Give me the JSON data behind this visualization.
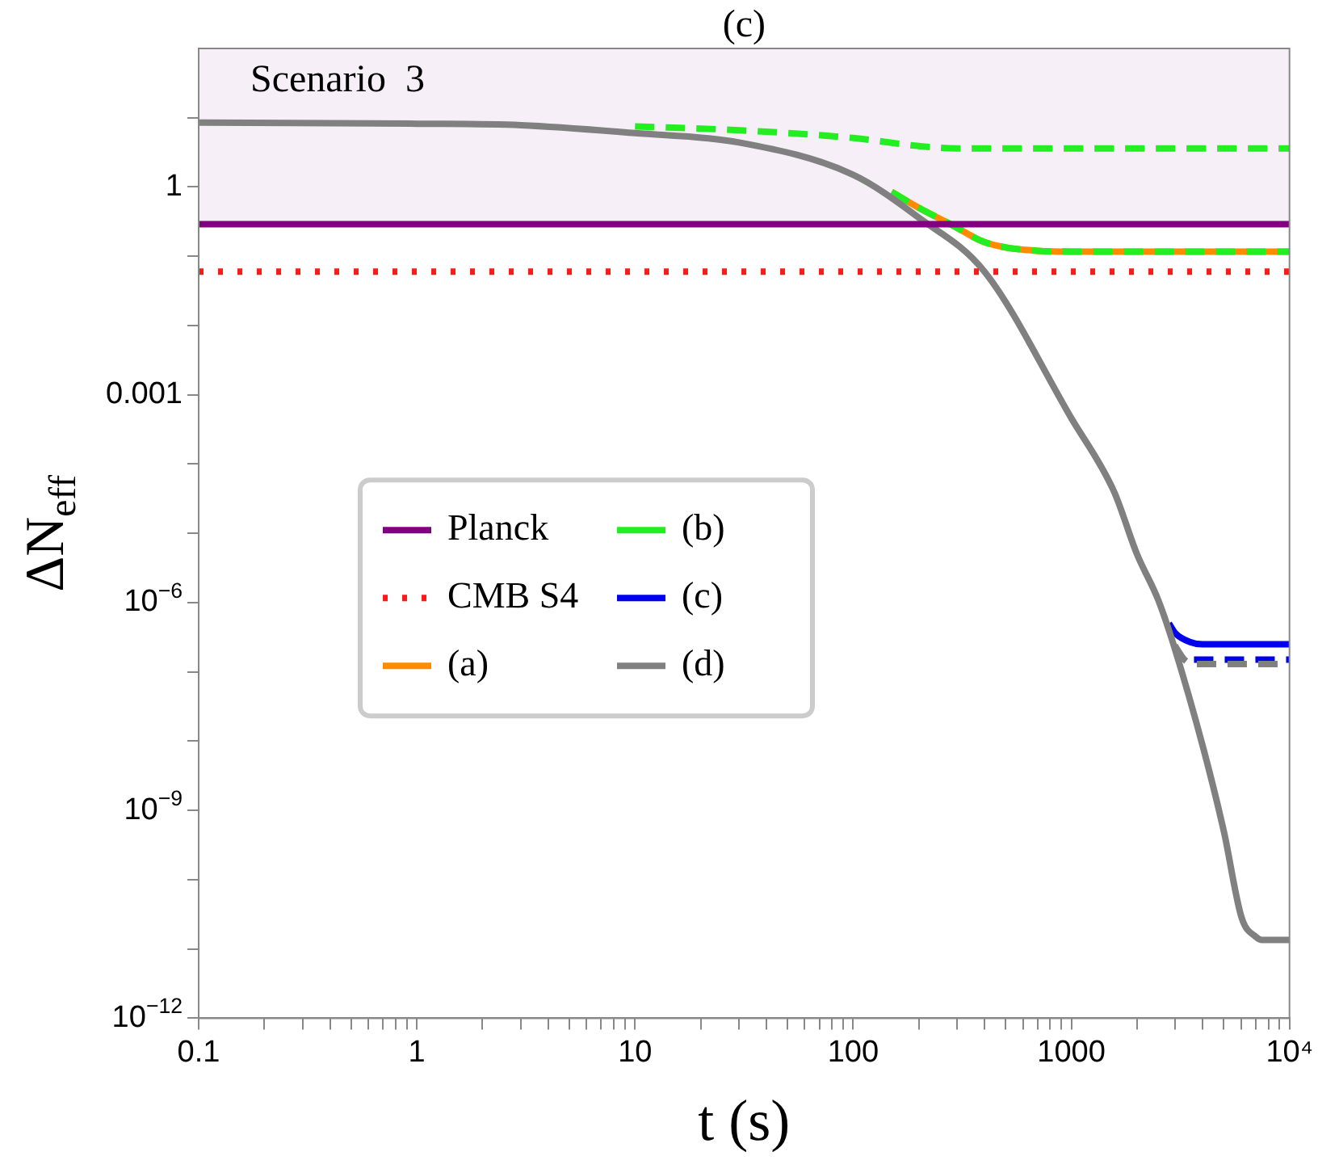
{
  "chart_data": {
    "type": "line",
    "title": "(c)",
    "xlabel": "t (s)",
    "ylabel": "ΔN$_{eff}$",
    "log": "xy",
    "grid": false,
    "legend": "left",
    "annotations": [
      "Scenario  3"
    ],
    "xlim": [
      0.1,
      10000
    ],
    "ylim": [
      1e-12,
      100
    ],
    "xticks": [
      0.1,
      {
        "value": 0.2,
        "label": null
      },
      {
        "value": 0.3,
        "label": null
      },
      {
        "value": 0.4,
        "label": null
      },
      {
        "value": 0.5,
        "label": null
      },
      {
        "value": 0.6,
        "label": null
      },
      {
        "value": 0.7,
        "label": null
      },
      {
        "value": 0.8,
        "label": null
      },
      {
        "value": 0.9,
        "label": null
      },
      1,
      {
        "value": 2,
        "label": null
      },
      {
        "value": 3,
        "label": null
      },
      {
        "value": 4,
        "label": null
      },
      {
        "value": 5,
        "label": null
      },
      {
        "value": 6,
        "label": null
      },
      {
        "value": 7,
        "label": null
      },
      {
        "value": 8,
        "label": null
      },
      {
        "value": 9,
        "label": null
      },
      10,
      {
        "value": 20,
        "label": null
      },
      {
        "value": 30,
        "label": null
      },
      {
        "value": 40,
        "label": null
      },
      {
        "value": 50,
        "label": null
      },
      {
        "value": 60,
        "label": null
      },
      {
        "value": 70,
        "label": null
      },
      {
        "value": 80,
        "label": null
      },
      {
        "value": 90,
        "label": null
      },
      100,
      {
        "value": 200,
        "label": null
      },
      {
        "value": 300,
        "label": null
      },
      {
        "value": 400,
        "label": null
      },
      {
        "value": 500,
        "label": null
      },
      {
        "value": 600,
        "label": null
      },
      {
        "value": 700,
        "label": null
      },
      {
        "value": 800,
        "label": null
      },
      {
        "value": 900,
        "label": null
      },
      1000,
      {
        "value": 2000,
        "label": null
      },
      {
        "value": 3000,
        "label": null
      },
      {
        "value": 4000,
        "label": null
      },
      {
        "value": 5000,
        "label": null
      },
      {
        "value": 6000,
        "label": null
      },
      {
        "value": 7000,
        "label": null
      },
      {
        "value": 8000,
        "label": null
      },
      {
        "value": 9000,
        "label": null
      },
      {
        "value": 10000,
        "label": "10⁴"
      }
    ],
    "yticks": [
      {
        "value": 1e-12,
        "label": "10$^{−12}$"
      },
      {
        "value": 1e-11,
        "label": null
      },
      {
        "value": 1e-10,
        "label": null
      },
      {
        "value": 1e-09,
        "label": "10$^{−9}$"
      },
      {
        "value": 1e-08,
        "label": null
      },
      {
        "value": 1e-07,
        "label": null
      },
      {
        "value": 1e-06,
        "label": "10$^{−6}$"
      },
      {
        "value": 1e-05,
        "label": null
      },
      {
        "value": 0.0001,
        "label": null
      },
      0.001,
      {
        "value": 0.01,
        "label": null
      },
      {
        "value": 0.1,
        "label": null
      },
      1,
      {
        "value": 10,
        "label": null
      }
    ],
    "bands": [
      {
        "axis": "y",
        "from": 0.29,
        "to": 100,
        "color": "#f6eff7"
      }
    ],
    "ref_lines": [
      {
        "axis": "y",
        "value": 0.29,
        "label": "Planck",
        "color": "#800080",
        "line_style": "solid"
      },
      {
        "axis": "y",
        "value": 0.06,
        "label": "CMB S4",
        "color": "#ff1a1a",
        "line_style": "dotted"
      }
    ],
    "series": [
      {
        "name": "(a)",
        "color": "#ff8c00",
        "line_style": "solid",
        "x": [
          150,
          200,
          280,
          400,
          700,
          1000,
          10000
        ],
        "values": [
          0.85,
          0.5,
          0.29,
          0.16,
          0.12,
          0.117,
          0.117
        ]
      },
      {
        "name": "(b)",
        "color": "#22ee22",
        "line_style": "dashed",
        "x": [
          150,
          200,
          280,
          400,
          700,
          1000,
          10000
        ],
        "values": [
          0.85,
          0.5,
          0.29,
          0.16,
          0.12,
          0.117,
          0.117
        ]
      },
      {
        "color": "#22ee22",
        "line_style": "dashed",
        "x": [
          10,
          30,
          100,
          200,
          300,
          500,
          10000
        ],
        "values": [
          7.5,
          6.6,
          5.1,
          3.9,
          3.6,
          3.6,
          3.6
        ]
      },
      {
        "name": "(c)",
        "color": "#0000ee",
        "line_style": "solid",
        "x": [
          2800,
          3000,
          3500,
          4000,
          10000
        ],
        "values": [
          5e-07,
          3.6e-07,
          2.7e-07,
          2.5e-07,
          2.5e-07
        ]
      },
      {
        "color": "#0000ee",
        "line_style": "dashed",
        "x": [
          3650,
          10000
        ],
        "values": [
          1.5e-07,
          1.5e-07
        ]
      },
      {
        "color": "#808080",
        "line_style": "dashed",
        "x": [
          2980,
          3300,
          3650,
          10000
        ],
        "values": [
          2.4e-07,
          1.5e-07,
          1.3e-07,
          1.3e-07
        ]
      },
      {
        "name": "(d)",
        "color": "#808080",
        "line_style": "solid",
        "x": [
          0.1,
          1,
          3,
          10,
          30,
          100,
          200,
          400,
          1000,
          1570,
          2000,
          2500,
          2950,
          4040,
          5000,
          6040,
          7000,
          7500,
          10000
        ],
        "values": [
          8.5,
          8.2,
          7.8,
          6,
          4.4,
          1.5,
          0.36,
          0.06,
          0.00046,
          4e-05,
          5e-06,
          1.1e-06,
          2.4e-07,
          7.6e-09,
          5e-10,
          2.8e-11,
          1.5e-11,
          1.35e-11,
          1.35e-11
        ]
      }
    ]
  }
}
